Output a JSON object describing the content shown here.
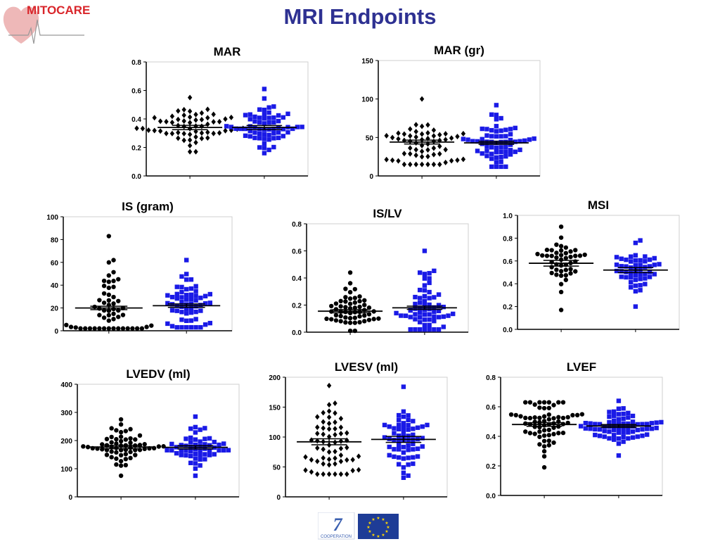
{
  "slide": {
    "title": "MRI Endpoints",
    "logo_text": "MITOCARE",
    "footer_logo_text": "COOPERATION",
    "footer_logo_number": "7"
  },
  "colors": {
    "title": "#2e3192",
    "logo": "#d9252a",
    "series_a": "#000000",
    "series_b": "#1a1ae6"
  },
  "chart_data": [
    {
      "type": "scatter",
      "title": "MAR",
      "xlabel": "",
      "ylabel": "",
      "ylim": [
        0,
        0.8
      ],
      "yticks": [
        "0.0",
        "0.2",
        "0.4",
        "0.6",
        "0.8"
      ],
      "series": [
        {
          "marker": "diamond",
          "mean": 0.34,
          "sem": 0.015,
          "min": 0.17,
          "max": 0.55,
          "n": 60
        },
        {
          "marker": "square",
          "mean": 0.34,
          "sem": 0.014,
          "min": 0.16,
          "max": 0.61,
          "n": 65
        }
      ]
    },
    {
      "type": "scatter",
      "title": "MAR (gr)",
      "xlabel": "",
      "ylabel": "",
      "ylim": [
        0,
        150
      ],
      "yticks": [
        "0",
        "50",
        "100",
        "150"
      ],
      "series": [
        {
          "marker": "diamond",
          "mean": 44,
          "sem": 2.5,
          "min": 15,
          "max": 100,
          "n": 60
        },
        {
          "marker": "square",
          "mean": 43,
          "sem": 2.0,
          "min": 12,
          "max": 92,
          "n": 65
        }
      ]
    },
    {
      "type": "scatter",
      "title": "IS (gram)",
      "xlabel": "",
      "ylabel": "",
      "ylim": [
        0,
        100
      ],
      "yticks": [
        "0",
        "20",
        "40",
        "60",
        "80",
        "100"
      ],
      "series": [
        {
          "marker": "circle",
          "mean": 20,
          "sem": 1.5,
          "min": 2,
          "max": 83,
          "n": 55
        },
        {
          "marker": "square",
          "mean": 22,
          "sem": 1.5,
          "min": 3,
          "max": 62,
          "n": 60
        }
      ]
    },
    {
      "type": "scatter",
      "title": "IS/LV",
      "xlabel": "",
      "ylabel": "",
      "ylim": [
        0,
        0.8
      ],
      "yticks": [
        "0.0",
        "0.2",
        "0.4",
        "0.6",
        "0.8"
      ],
      "series": [
        {
          "marker": "circle",
          "mean": 0.155,
          "sem": 0.012,
          "min": 0.01,
          "max": 0.44,
          "n": 55
        },
        {
          "marker": "square",
          "mean": 0.18,
          "sem": 0.012,
          "min": 0.02,
          "max": 0.6,
          "n": 62
        }
      ]
    },
    {
      "type": "scatter",
      "title": "MSI",
      "xlabel": "",
      "ylabel": "",
      "ylim": [
        0,
        1.0
      ],
      "yticks": [
        "0.0",
        "0.2",
        "0.4",
        "0.6",
        "0.8",
        "1.0"
      ],
      "series": [
        {
          "marker": "circle",
          "mean": 0.58,
          "sem": 0.025,
          "min": 0.17,
          "max": 0.9,
          "n": 45
        },
        {
          "marker": "square",
          "mean": 0.52,
          "sem": 0.022,
          "min": 0.2,
          "max": 0.78,
          "n": 50
        }
      ]
    },
    {
      "type": "scatter",
      "title": "LVEDV (ml)",
      "xlabel": "",
      "ylabel": "",
      "ylim": [
        0,
        400
      ],
      "yticks": [
        "0",
        "100",
        "200",
        "300",
        "400"
      ],
      "series": [
        {
          "marker": "circle",
          "mean": 177,
          "sem": 6,
          "min": 75,
          "max": 275,
          "n": 60
        },
        {
          "marker": "square",
          "mean": 176,
          "sem": 6,
          "min": 75,
          "max": 285,
          "n": 55
        }
      ]
    },
    {
      "type": "scatter",
      "title": "LVESV (ml)",
      "xlabel": "",
      "ylabel": "",
      "ylim": [
        0,
        200
      ],
      "yticks": [
        "0",
        "50",
        "100",
        "150",
        "200"
      ],
      "series": [
        {
          "marker": "diamond",
          "mean": 92,
          "sem": 5,
          "min": 38,
          "max": 186,
          "n": 60
        },
        {
          "marker": "square",
          "mean": 96,
          "sem": 5,
          "min": 32,
          "max": 184,
          "n": 62
        }
      ]
    },
    {
      "type": "scatter",
      "title": "LVEF",
      "xlabel": "",
      "ylabel": "",
      "ylim": [
        0,
        0.8
      ],
      "yticks": [
        "0.0",
        "0.2",
        "0.4",
        "0.6",
        "0.8"
      ],
      "series": [
        {
          "marker": "circle",
          "mean": 0.48,
          "sem": 0.012,
          "min": 0.19,
          "max": 0.63,
          "n": 65
        },
        {
          "marker": "square",
          "mean": 0.47,
          "sem": 0.01,
          "min": 0.27,
          "max": 0.64,
          "n": 70
        }
      ]
    }
  ]
}
